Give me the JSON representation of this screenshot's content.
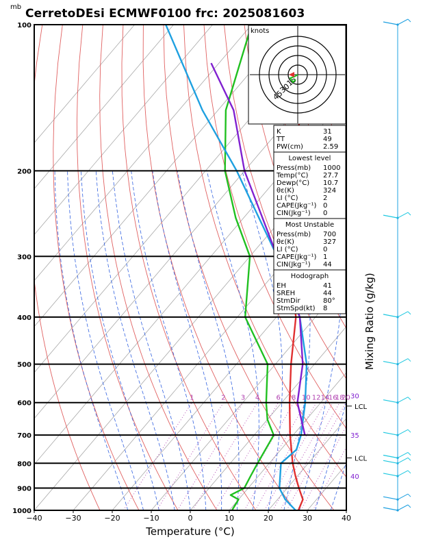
{
  "header": {
    "title": "CerretoDEsi ECMWF0100  frc: 2025081603",
    "pressure_unit": "mb"
  },
  "chart_data": {
    "type": "line",
    "title": "CerretoDEsi ECMWF0100  frc: 2025081603",
    "xlabel": "Temperature (°C)",
    "ylabel": "Mixing Ratio (g/kg)",
    "pressure_unit": "mb",
    "xlim": [
      -40,
      40
    ],
    "ylim": [
      1000,
      100
    ],
    "y_scale": "log",
    "x_ticks": [
      "−40",
      "−30",
      "−20",
      "−10",
      "0",
      "10",
      "20",
      "30",
      "40"
    ],
    "y_ticks": [
      "100",
      "200",
      "300",
      "400",
      "500",
      "600",
      "700",
      "800",
      "900",
      "1000"
    ],
    "mixing_ratio_labels": [
      "1",
      "2",
      "3",
      "4",
      "6",
      "8",
      "10",
      "12",
      "14",
      "16",
      "18",
      "20",
      "25",
      "30"
    ],
    "series": [
      {
        "color": "#e03030",
        "points": [
          [
            1000,
            27.7
          ],
          [
            950,
            26.5
          ],
          [
            900,
            23
          ],
          [
            850,
            19.5
          ],
          [
            800,
            16
          ],
          [
            700,
            9.2
          ],
          [
            600,
            2
          ],
          [
            500,
            -6
          ],
          [
            400,
            -15
          ],
          [
            350,
            -22
          ],
          [
            300,
            -30
          ],
          [
            250,
            -40
          ],
          [
            200,
            -50
          ],
          [
            150,
            -58
          ],
          [
            100,
            -68
          ]
        ]
      },
      {
        "color": "#20c020",
        "points": [
          [
            1000,
            10.7
          ],
          [
            950,
            10
          ],
          [
            930,
            7
          ],
          [
            900,
            9
          ],
          [
            850,
            8
          ],
          [
            800,
            7
          ],
          [
            700,
            5
          ],
          [
            650,
            0
          ],
          [
            600,
            -4
          ],
          [
            500,
            -12
          ],
          [
            400,
            -28
          ],
          [
            300,
            -40
          ],
          [
            250,
            -52
          ],
          [
            200,
            -65
          ],
          [
            150,
            -78
          ],
          [
            100,
            -90
          ]
        ]
      },
      {
        "color": "#1ea0e0",
        "points": [
          [
            1000,
            27
          ],
          [
            950,
            22
          ],
          [
            900,
            18
          ],
          [
            800,
            13
          ],
          [
            750,
            14
          ],
          [
            700,
            12
          ],
          [
            600,
            6
          ],
          [
            500,
            -2
          ],
          [
            400,
            -14
          ],
          [
            300,
            -33
          ],
          [
            200,
            -62
          ],
          [
            150,
            -84
          ],
          [
            100,
            -112
          ]
        ]
      },
      {
        "color": "#8020d0",
        "points": [
          [
            700,
            13
          ],
          [
            600,
            4
          ],
          [
            500,
            -3
          ],
          [
            400,
            -14
          ],
          [
            300,
            -33
          ],
          [
            200,
            -60
          ],
          [
            150,
            -76
          ],
          [
            120,
            -92
          ]
        ]
      }
    ],
    "annotations": {
      "lcl_label": "LCL",
      "lcl_pressures": [
        610,
        780
      ],
      "purple_labels": [
        {
          "text": "30",
          "p": 580
        },
        {
          "text": "35",
          "p": 700
        },
        {
          "text": "40",
          "p": 850
        }
      ]
    }
  },
  "hodograph": {
    "units_label": "knots",
    "ring_labels": [
      "15",
      "30",
      "45"
    ]
  },
  "indices": {
    "top": [
      {
        "label": "K",
        "value": "31"
      },
      {
        "label": "TT",
        "value": "49"
      },
      {
        "label": "PW(cm)",
        "value": "2.59"
      }
    ],
    "lowest_level": {
      "header": "Lowest level",
      "rows": [
        {
          "label": "Press(mb)",
          "value": "1000"
        },
        {
          "label": "Temp(°C)",
          "value": "27.7"
        },
        {
          "label": "Dewp(°C)",
          "value": "10.7"
        },
        {
          "label": "θε(K)",
          "value": "324"
        },
        {
          "label": "LI  (°C)",
          "value": "2"
        },
        {
          "label": "CAPE(Jkg⁻¹)",
          "value": "0"
        },
        {
          "label": "CIN(Jkg⁻¹)",
          "value": "0"
        }
      ]
    },
    "most_unstable": {
      "header": "Most Unstable",
      "rows": [
        {
          "label": "Press(mb)",
          "value": "700"
        },
        {
          "label": "θε(K)",
          "value": "327"
        },
        {
          "label": "LI  (°C)",
          "value": "0"
        },
        {
          "label": "CAPE(Jkg⁻¹)",
          "value": "1"
        },
        {
          "label": "CIN(Jkg⁻¹)",
          "value": "44"
        }
      ]
    },
    "hodograph": {
      "header": "Hodograph",
      "rows": [
        {
          "label": "EH",
          "value": "41"
        },
        {
          "label": "SREH",
          "value": "44"
        },
        {
          "label": "StmDir",
          "value": "80°"
        },
        {
          "label": "StmSpd(kt)",
          "value": "8"
        }
      ]
    }
  },
  "colors": {
    "temperature": "#e03030",
    "dewpoint": "#20c020",
    "parcel": "#1ea0e0",
    "mu_parcel": "#8020d0",
    "dry_adiabat": "#e06060",
    "moist_adiabat": "#3060e0",
    "isotherm": "#a8a8a8",
    "mixing_ratio": "#b040b0",
    "wind_barb": "#1ec8e0"
  }
}
